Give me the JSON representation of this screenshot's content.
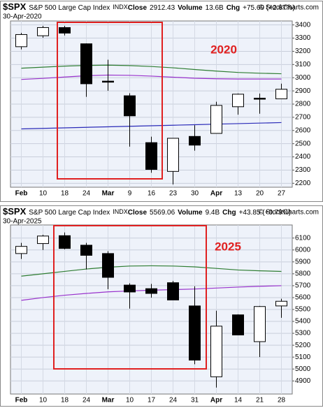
{
  "chart_data": [
    {
      "type": "candlestick",
      "header": {
        "symbol": "$SPX",
        "name": "S&P 500 Large Cap Index",
        "exchange": "INDX",
        "source": "© StockCharts.com",
        "date": "30-Apr-2020",
        "close_label": "Close",
        "close": "2912.43",
        "volume_label": "Volume",
        "volume": "13.6B",
        "chg_label": "Chg",
        "chg": "+75.69 (+2.67%)"
      },
      "annotation": "2020",
      "categories": [
        "Feb",
        "10",
        "18",
        "24",
        "Mar",
        "9",
        "16",
        "23",
        "30",
        "Apr",
        "13",
        "20",
        "27"
      ],
      "open": [
        3235,
        3318,
        3380,
        3257,
        2974,
        2863,
        2508,
        2290,
        2555,
        2578,
        2780,
        2845,
        2840
      ],
      "high": [
        3340,
        3393,
        3393,
        3260,
        3136,
        2882,
        2553,
        2540,
        2640,
        2818,
        2880,
        2880,
        2955
      ],
      "low": [
        3215,
        3303,
        3320,
        2855,
        2901,
        2478,
        2280,
        2191,
        2447,
        2578,
        2720,
        2727,
        2840
      ],
      "close": [
        3327,
        3380,
        3338,
        2954,
        2972,
        2711,
        2305,
        2541,
        2489,
        2790,
        2875,
        2837,
        2912.43
      ],
      "lines": [
        {
          "color": "#2e7d32",
          "values": [
            3072,
            3080,
            3088,
            3093,
            3095,
            3092,
            3085,
            3075,
            3062,
            3050,
            3040,
            3034,
            3030
          ]
        },
        {
          "color": "#9932cc",
          "values": [
            2987,
            2995,
            3005,
            3015,
            3020,
            3018,
            3012,
            3004,
            2996,
            2992,
            2990,
            2990,
            2990
          ]
        },
        {
          "color": "#2a2ab8",
          "values": [
            2612,
            2616,
            2620,
            2624,
            2628,
            2632,
            2636,
            2640,
            2644,
            2648,
            2652,
            2656,
            2660
          ]
        }
      ],
      "ylim": [
        2170,
        3430
      ],
      "yticks": [
        2200,
        2300,
        2400,
        2500,
        2600,
        2700,
        2800,
        2900,
        3000,
        3100,
        3200,
        3300,
        3400
      ]
    },
    {
      "type": "candlestick",
      "header": {
        "symbol": "$SPX",
        "name": "S&P 500 Large Cap Index",
        "exchange": "INDX",
        "source": "© StockCharts.com",
        "date": "30-Apr-2025",
        "close_label": "Close",
        "close": "5569.06",
        "volume_label": "Volume",
        "volume": "9.4B",
        "chg_label": "Chg",
        "chg": "+43.85 (+0.79%)"
      },
      "annotation": "2025",
      "categories": [
        "Feb",
        "10",
        "18",
        "24",
        "Mar",
        "10",
        "17",
        "24",
        "31",
        "Apr",
        "14",
        "21",
        "28"
      ],
      "open": [
        5970,
        6054,
        6120,
        6040,
        5970,
        5705,
        5675,
        5725,
        5530,
        4935,
        5455,
        5230,
        5530
      ],
      "high": [
        6060,
        6128,
        6147,
        6060,
        5990,
        5720,
        5715,
        5740,
        5695,
        5490,
        5460,
        5530,
        5590
      ],
      "low": [
        5925,
        6000,
        6005,
        5837,
        5670,
        5507,
        5600,
        5580,
        5040,
        4844,
        5290,
        5100,
        5430
      ],
      "close": [
        6030,
        6117,
        6013,
        5955,
        5770,
        5647,
        5635,
        5580,
        5075,
        5360,
        5286,
        5525,
        5569.06
      ],
      "lines": [
        {
          "color": "#2e7d32",
          "values": [
            5780,
            5800,
            5820,
            5840,
            5855,
            5865,
            5867,
            5865,
            5858,
            5845,
            5832,
            5825,
            5820
          ]
        },
        {
          "color": "#9932cc",
          "values": [
            5577,
            5600,
            5620,
            5635,
            5648,
            5656,
            5662,
            5667,
            5672,
            5680,
            5688,
            5695,
            5700
          ]
        }
      ],
      "ylim": [
        4790,
        6210
      ],
      "yticks": [
        4900,
        5000,
        5100,
        5200,
        5300,
        5400,
        5500,
        5600,
        5700,
        5800,
        5900,
        6000,
        6100
      ]
    }
  ]
}
